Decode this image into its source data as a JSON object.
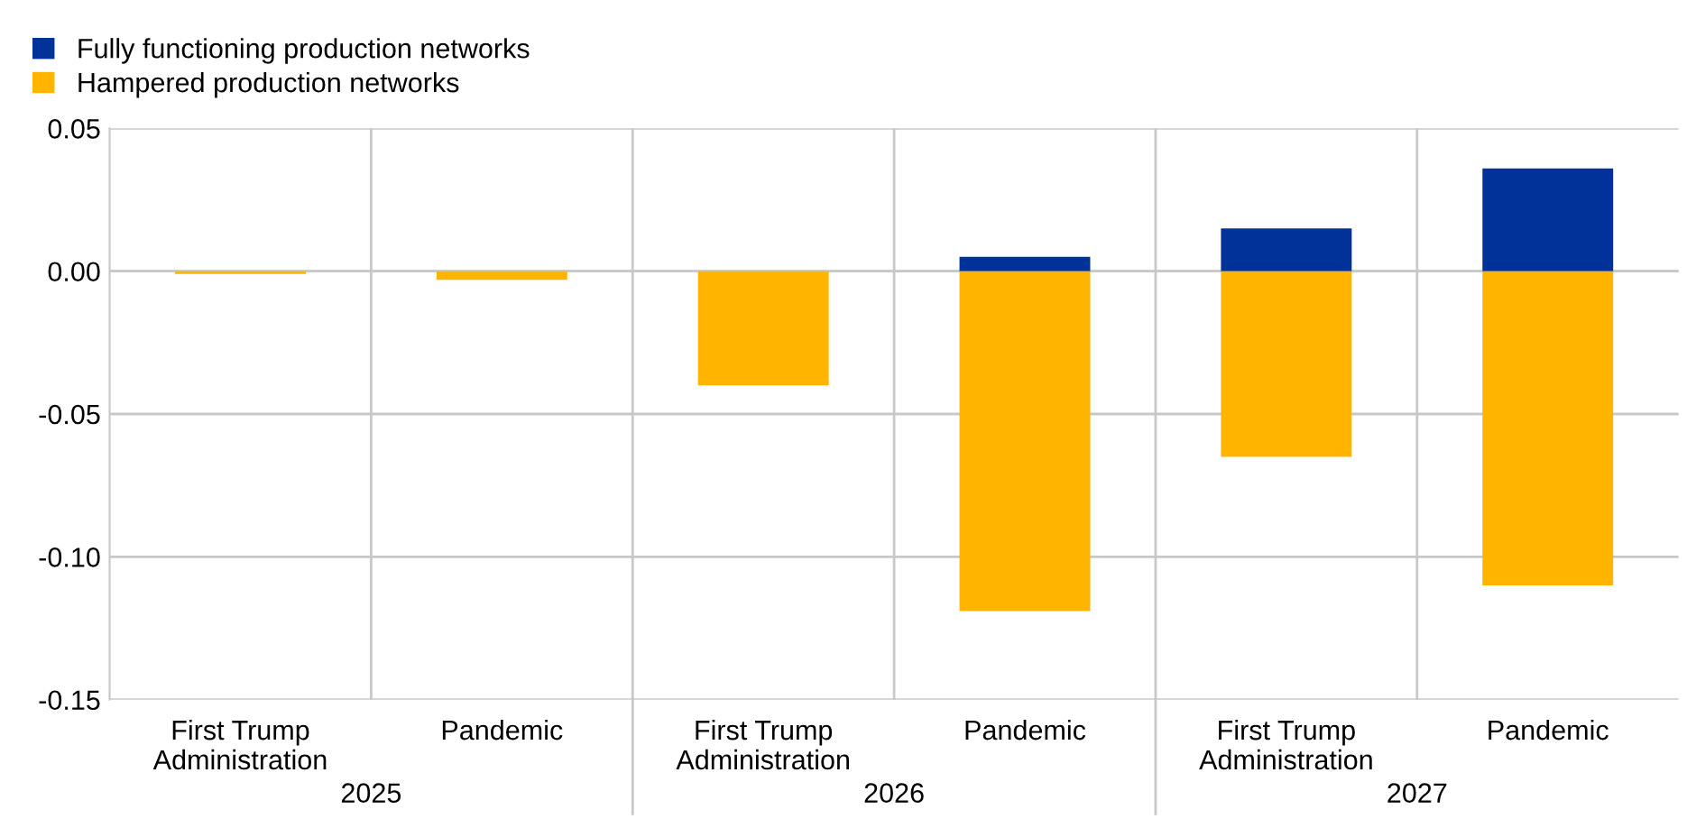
{
  "chart_data": {
    "type": "bar",
    "stacked": true,
    "categories": [
      "First Trump\nAdministration",
      "Pandemic",
      "First Trump\nAdministration",
      "Pandemic",
      "First Trump\nAdministration",
      "Pandemic"
    ],
    "series": [
      {
        "name": "Fully functioning production networks",
        "color": "#003299",
        "values": [
          0,
          0,
          0,
          0.005,
          0.015,
          0.036
        ]
      },
      {
        "name": "Hampered production networks",
        "color": "#ffb400",
        "values": [
          -0.001,
          -0.003,
          -0.04,
          -0.119,
          -0.065,
          -0.11
        ]
      }
    ],
    "annotations": [
      "2025",
      "2026",
      "2027"
    ],
    "ylim": [
      -0.15,
      0.05
    ],
    "yticks": [
      {
        "value": -0.15,
        "label": "-0.15"
      },
      {
        "value": -0.1,
        "label": "-0.10"
      },
      {
        "value": -0.05,
        "label": "-0.05"
      },
      {
        "value": 0,
        "label": "0.00"
      },
      {
        "value": 0.05,
        "label": "0.05"
      }
    ],
    "grid": true,
    "legend": "top left"
  }
}
